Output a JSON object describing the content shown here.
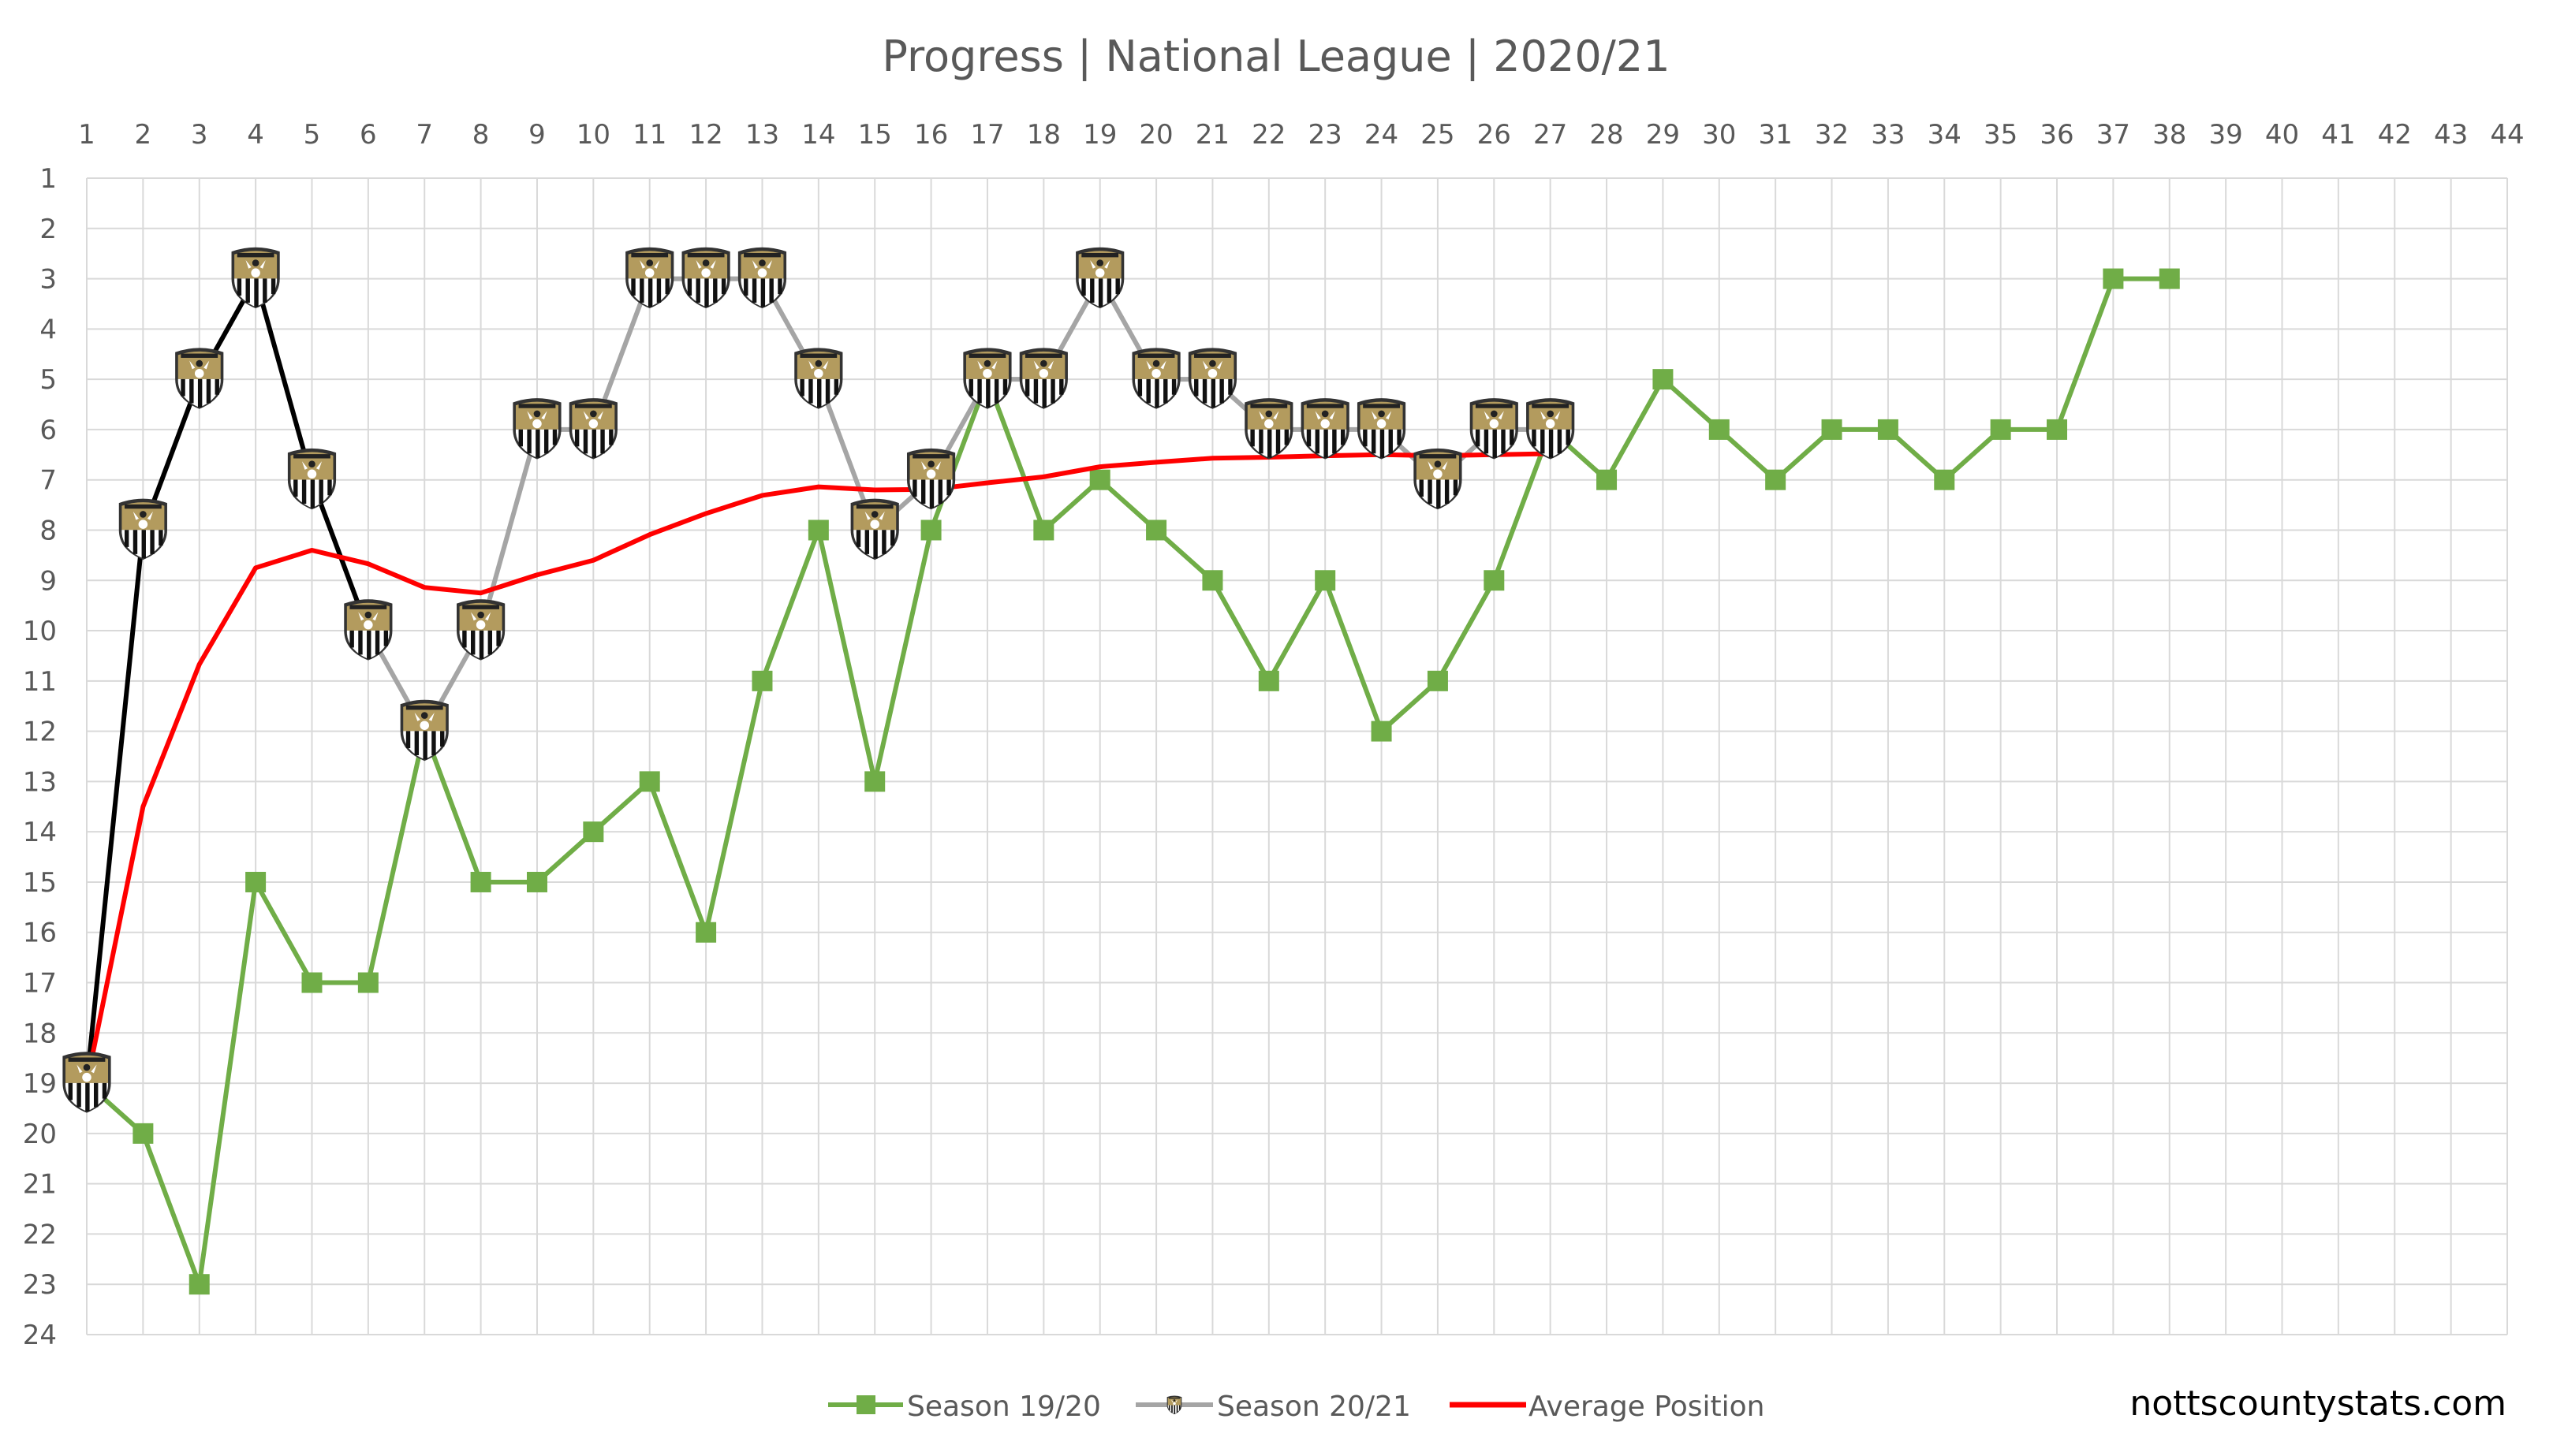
{
  "chart_data": {
    "type": "line",
    "title": "Progress | National League | 2020/21",
    "xlabel": "",
    "ylabel": "",
    "x_ticks": [
      1,
      2,
      3,
      4,
      5,
      6,
      7,
      8,
      9,
      10,
      11,
      12,
      13,
      14,
      15,
      16,
      17,
      18,
      19,
      20,
      21,
      22,
      23,
      24,
      25,
      26,
      27,
      28,
      29,
      30,
      31,
      32,
      33,
      34,
      35,
      36,
      37,
      38,
      39,
      40,
      41,
      42,
      43,
      44
    ],
    "y_ticks": [
      1,
      2,
      3,
      4,
      5,
      6,
      7,
      8,
      9,
      10,
      11,
      12,
      13,
      14,
      15,
      16,
      17,
      18,
      19,
      20,
      21,
      22,
      23,
      24
    ],
    "xlim": [
      1,
      44
    ],
    "ylim": [
      1,
      24
    ],
    "y_inverted": true,
    "grid": true,
    "legend_position": "bottom",
    "series": [
      {
        "name": "Season 19/20",
        "color": "#70ad47",
        "marker": "square",
        "x": [
          1,
          2,
          3,
          4,
          5,
          6,
          7,
          8,
          9,
          10,
          11,
          12,
          13,
          14,
          15,
          16,
          17,
          18,
          19,
          20,
          21,
          22,
          23,
          24,
          25,
          26,
          27,
          28,
          29,
          30,
          31,
          32,
          33,
          34,
          35,
          36,
          37,
          38
        ],
        "values": [
          19,
          20,
          23,
          15,
          17,
          17,
          12,
          15,
          15,
          14,
          13,
          16,
          11,
          8,
          13,
          8,
          5,
          8,
          7,
          8,
          9,
          11,
          9,
          12,
          11,
          9,
          6,
          7,
          5,
          6,
          7,
          6,
          6,
          7,
          6,
          6,
          3,
          3
        ]
      },
      {
        "name": "Season 20/21",
        "color": "#a5a5a5",
        "early_color": "#000000",
        "marker": "club-crest",
        "x": [
          1,
          2,
          3,
          4,
          5,
          6,
          7,
          8,
          9,
          10,
          11,
          12,
          13,
          14,
          15,
          16,
          17,
          18,
          19,
          20,
          21,
          22,
          23,
          24,
          25,
          26,
          27
        ],
        "values": [
          19,
          8,
          5,
          3,
          7,
          10,
          12,
          10,
          6,
          6,
          3,
          3,
          3,
          5,
          8,
          7,
          5,
          5,
          3,
          5,
          5,
          6,
          6,
          6,
          7,
          6,
          6
        ]
      },
      {
        "name": "Average Position",
        "color": "#ff0000",
        "marker": "none",
        "x": [
          1,
          2,
          3,
          4,
          5,
          6,
          7,
          8,
          9,
          10,
          11,
          12,
          13,
          14,
          15,
          16,
          17,
          18,
          19,
          20,
          21,
          22,
          23,
          24,
          25,
          26,
          27
        ],
        "values": [
          19,
          13.5,
          10.67,
          8.75,
          8.4,
          8.67,
          9.14,
          9.25,
          8.89,
          8.6,
          8.09,
          7.67,
          7.31,
          7.14,
          7.2,
          7.19,
          7.06,
          6.94,
          6.74,
          6.65,
          6.57,
          6.55,
          6.52,
          6.5,
          6.52,
          6.5,
          6.48
        ]
      }
    ]
  },
  "watermark": "nottscountystats.com"
}
